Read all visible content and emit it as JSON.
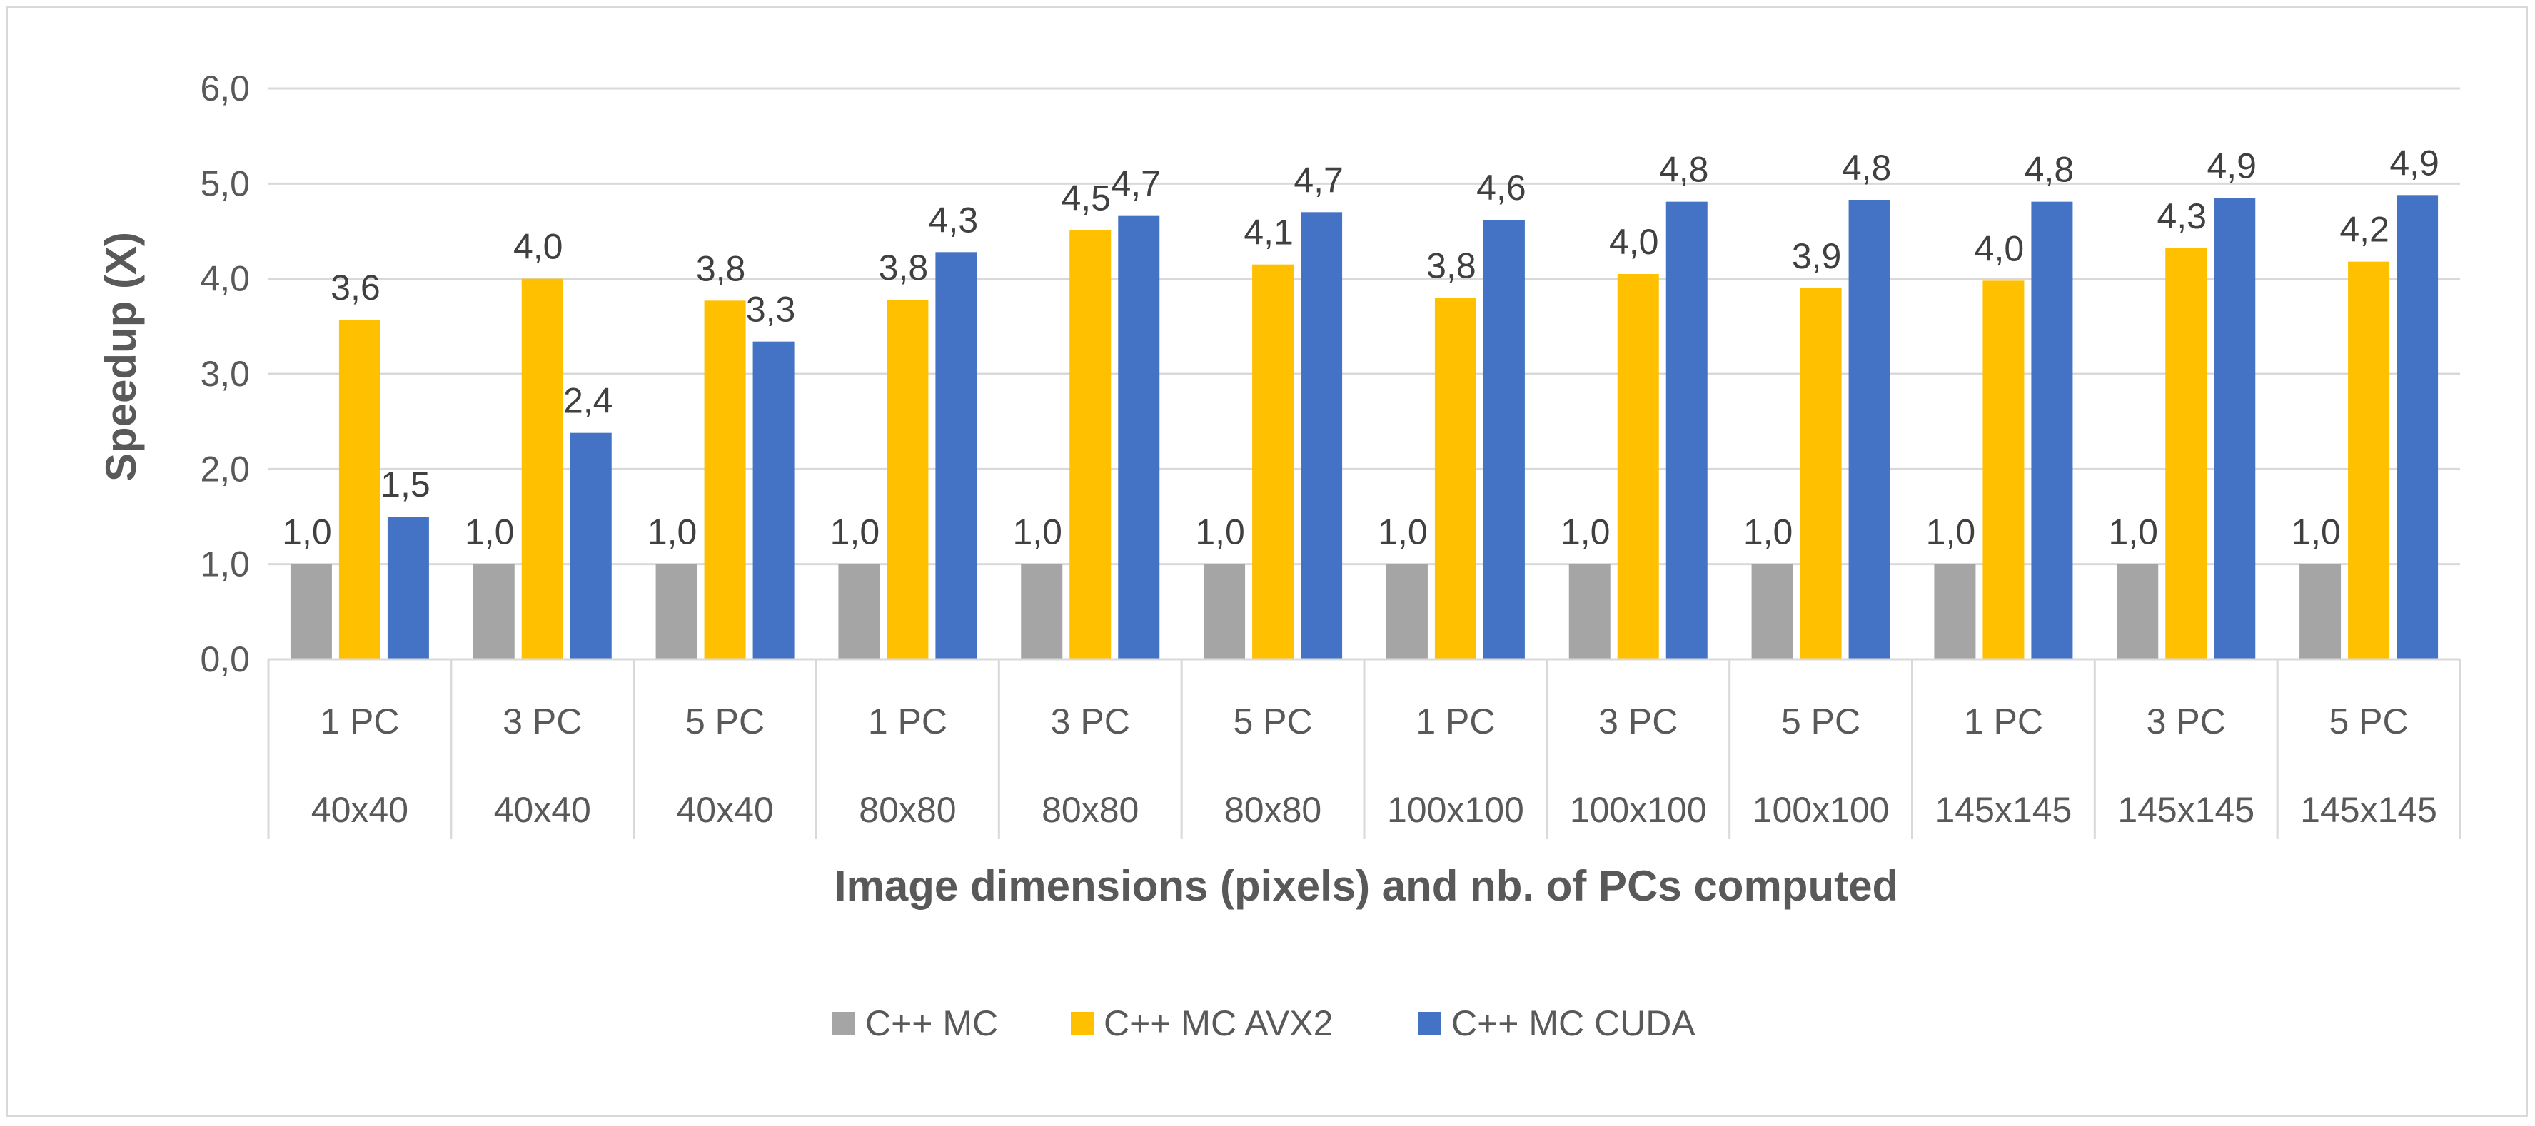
{
  "chart_data": {
    "type": "bar",
    "title": "",
    "xlabel": "Image dimensions (pixels) and nb. of PCs computed",
    "ylabel": "Speedup (X)",
    "ylim": [
      0,
      6
    ],
    "y_ticks": [
      "0,0",
      "1,0",
      "2,0",
      "3,0",
      "4,0",
      "5,0",
      "6,0"
    ],
    "grid": true,
    "legend_position": "bottom",
    "categories": [
      {
        "pcs": "1 PC",
        "dims": "40x40"
      },
      {
        "pcs": "3 PC",
        "dims": "40x40"
      },
      {
        "pcs": "5 PC",
        "dims": "40x40"
      },
      {
        "pcs": "1 PC",
        "dims": "80x80"
      },
      {
        "pcs": "3 PC",
        "dims": "80x80"
      },
      {
        "pcs": "5 PC",
        "dims": "80x80"
      },
      {
        "pcs": "1 PC",
        "dims": "100x100"
      },
      {
        "pcs": "3 PC",
        "dims": "100x100"
      },
      {
        "pcs": "5 PC",
        "dims": "100x100"
      },
      {
        "pcs": "1 PC",
        "dims": "145x145"
      },
      {
        "pcs": "3 PC",
        "dims": "145x145"
      },
      {
        "pcs": "5 PC",
        "dims": "145x145"
      }
    ],
    "series": [
      {
        "name": "C++ MC",
        "color": "#a5a5a5",
        "values": [
          1.0,
          1.0,
          1.0,
          1.0,
          1.0,
          1.0,
          1.0,
          1.0,
          1.0,
          1.0,
          1.0,
          1.0
        ],
        "labels": [
          "1,0",
          "1,0",
          "1,0",
          "1,0",
          "1,0",
          "1,0",
          "1,0",
          "1,0",
          "1,0",
          "1,0",
          "1,0",
          "1,0"
        ]
      },
      {
        "name": "C++ MC AVX2",
        "color": "#ffc000",
        "values": [
          3.57,
          4.0,
          3.77,
          3.78,
          4.51,
          4.15,
          3.8,
          4.05,
          3.9,
          3.98,
          4.32,
          4.18
        ],
        "labels": [
          "3,6",
          "4,0",
          "3,8",
          "3,8",
          "4,5",
          "4,1",
          "3,8",
          "4,0",
          "3,9",
          "4,0",
          "4,3",
          "4,2"
        ]
      },
      {
        "name": "C++ MC CUDA",
        "color": "#4472c4",
        "values": [
          1.5,
          2.38,
          3.34,
          4.28,
          4.66,
          4.7,
          4.62,
          4.81,
          4.83,
          4.81,
          4.85,
          4.88
        ],
        "labels": [
          "1,5",
          "2,4",
          "3,3",
          "4,3",
          "4,7",
          "4,7",
          "4,6",
          "4,8",
          "4,8",
          "4,8",
          "4,9",
          "4,9"
        ]
      }
    ]
  }
}
